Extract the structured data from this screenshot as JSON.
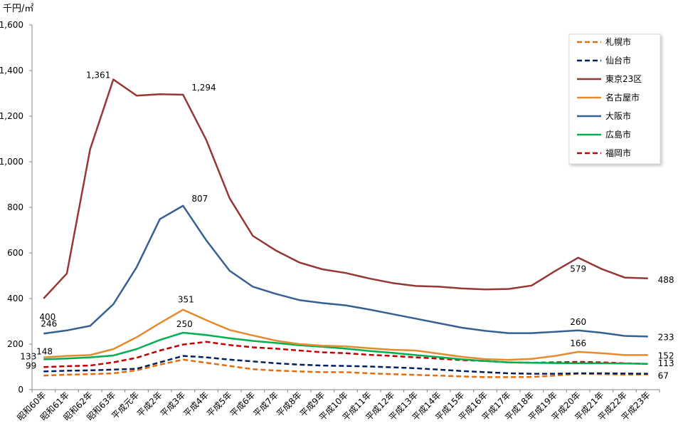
{
  "chart_data": {
    "type": "line",
    "unit_label": "千円/㎡",
    "ylim": [
      0,
      1600
    ],
    "yticks": [
      "0",
      "200",
      "400",
      "600",
      "800",
      "1,000",
      "1,200",
      "1,400",
      "1,600"
    ],
    "grid": false,
    "legend_position": "top-right",
    "categories": [
      "昭和60年",
      "昭和61年",
      "昭和62年",
      "昭和63年",
      "平成元年",
      "平成2年",
      "平成3年",
      "平成4年",
      "平成5年",
      "平成6年",
      "平成7年",
      "平成8年",
      "平成9年",
      "平成10年",
      "平成11年",
      "平成12年",
      "平成13年",
      "平成14年",
      "平成15年",
      "平成16年",
      "平成17年",
      "平成18年",
      "平成19年",
      "平成20年",
      "平成21年",
      "平成22年",
      "平成23年"
    ],
    "series": [
      {
        "name": "札幌市",
        "color": "#E46C0A",
        "dash": true,
        "values": [
          62,
          66,
          68,
          72,
          85,
          110,
          132,
          118,
          104,
          90,
          84,
          80,
          77,
          77,
          72,
          68,
          65,
          62,
          58,
          55,
          55,
          56,
          62,
          70,
          68,
          66,
          67
        ]
      },
      {
        "name": "仙台市",
        "color": "#002060",
        "dash": true,
        "values": [
          80,
          83,
          85,
          88,
          92,
          120,
          148,
          142,
          132,
          124,
          116,
          110,
          106,
          104,
          102,
          98,
          94,
          88,
          82,
          77,
          72,
          70,
          70,
          72,
          72,
          71,
          70
        ]
      },
      {
        "name": "東京23区",
        "color": "#953735",
        "dash": false,
        "values": [
          400,
          510,
          1055,
          1361,
          1290,
          1296,
          1294,
          1095,
          840,
          675,
          610,
          558,
          528,
          512,
          488,
          468,
          455,
          452,
          444,
          440,
          442,
          457,
          520,
          579,
          530,
          492,
          488
        ]
      },
      {
        "name": "名古屋市",
        "color": "#E68A2E",
        "dash": false,
        "values": [
          142,
          148,
          152,
          178,
          230,
          292,
          351,
          305,
          262,
          238,
          215,
          200,
          193,
          190,
          182,
          175,
          172,
          158,
          144,
          134,
          131,
          135,
          148,
          166,
          160,
          152,
          152
        ]
      },
      {
        "name": "大阪市",
        "color": "#376092",
        "dash": false,
        "values": [
          246,
          260,
          280,
          375,
          537,
          748,
          807,
          655,
          522,
          452,
          420,
          393,
          380,
          370,
          352,
          332,
          312,
          292,
          272,
          258,
          248,
          248,
          254,
          260,
          250,
          236,
          233
        ]
      },
      {
        "name": "広島市",
        "color": "#00B050",
        "dash": false,
        "values": [
          133,
          137,
          142,
          150,
          178,
          218,
          250,
          240,
          226,
          214,
          205,
          195,
          188,
          180,
          170,
          162,
          152,
          143,
          133,
          126,
          120,
          118,
          117,
          116,
          116,
          115,
          113
        ]
      },
      {
        "name": "福岡市",
        "color": "#C00000",
        "dash": true,
        "values": [
          99,
          103,
          106,
          120,
          140,
          172,
          198,
          210,
          196,
          186,
          180,
          172,
          164,
          160,
          153,
          148,
          142,
          136,
          130,
          126,
          120,
          118,
          120,
          122,
          120,
          116,
          113
        ]
      }
    ],
    "data_labels": [
      {
        "series": "東京23区",
        "index": 0,
        "text": "400"
      },
      {
        "series": "東京23区",
        "index": 3,
        "text": "1,361"
      },
      {
        "series": "東京23区",
        "index": 6,
        "text": "1,294"
      },
      {
        "series": "東京23区",
        "index": 23,
        "text": "579"
      },
      {
        "series": "東京23区",
        "index": 26,
        "text": "488"
      },
      {
        "series": "大阪市",
        "index": 0,
        "text": "246"
      },
      {
        "series": "大阪市",
        "index": 6,
        "text": "807"
      },
      {
        "series": "大阪市",
        "index": 23,
        "text": "260"
      },
      {
        "series": "大阪市",
        "index": 26,
        "text": "233"
      },
      {
        "series": "名古屋市",
        "index": 1,
        "text": "148"
      },
      {
        "series": "名古屋市",
        "index": 6,
        "text": "351"
      },
      {
        "series": "名古屋市",
        "index": 23,
        "text": "166"
      },
      {
        "series": "名古屋市",
        "index": 26,
        "text": "152"
      },
      {
        "series": "広島市",
        "index": 0,
        "text": "133"
      },
      {
        "series": "広島市",
        "index": 6,
        "text": "250"
      },
      {
        "series": "福岡市",
        "index": 0,
        "text": "99"
      },
      {
        "series": "福岡市",
        "index": 26,
        "text": "113"
      },
      {
        "series": "札幌市",
        "index": 26,
        "text": "67"
      }
    ]
  }
}
